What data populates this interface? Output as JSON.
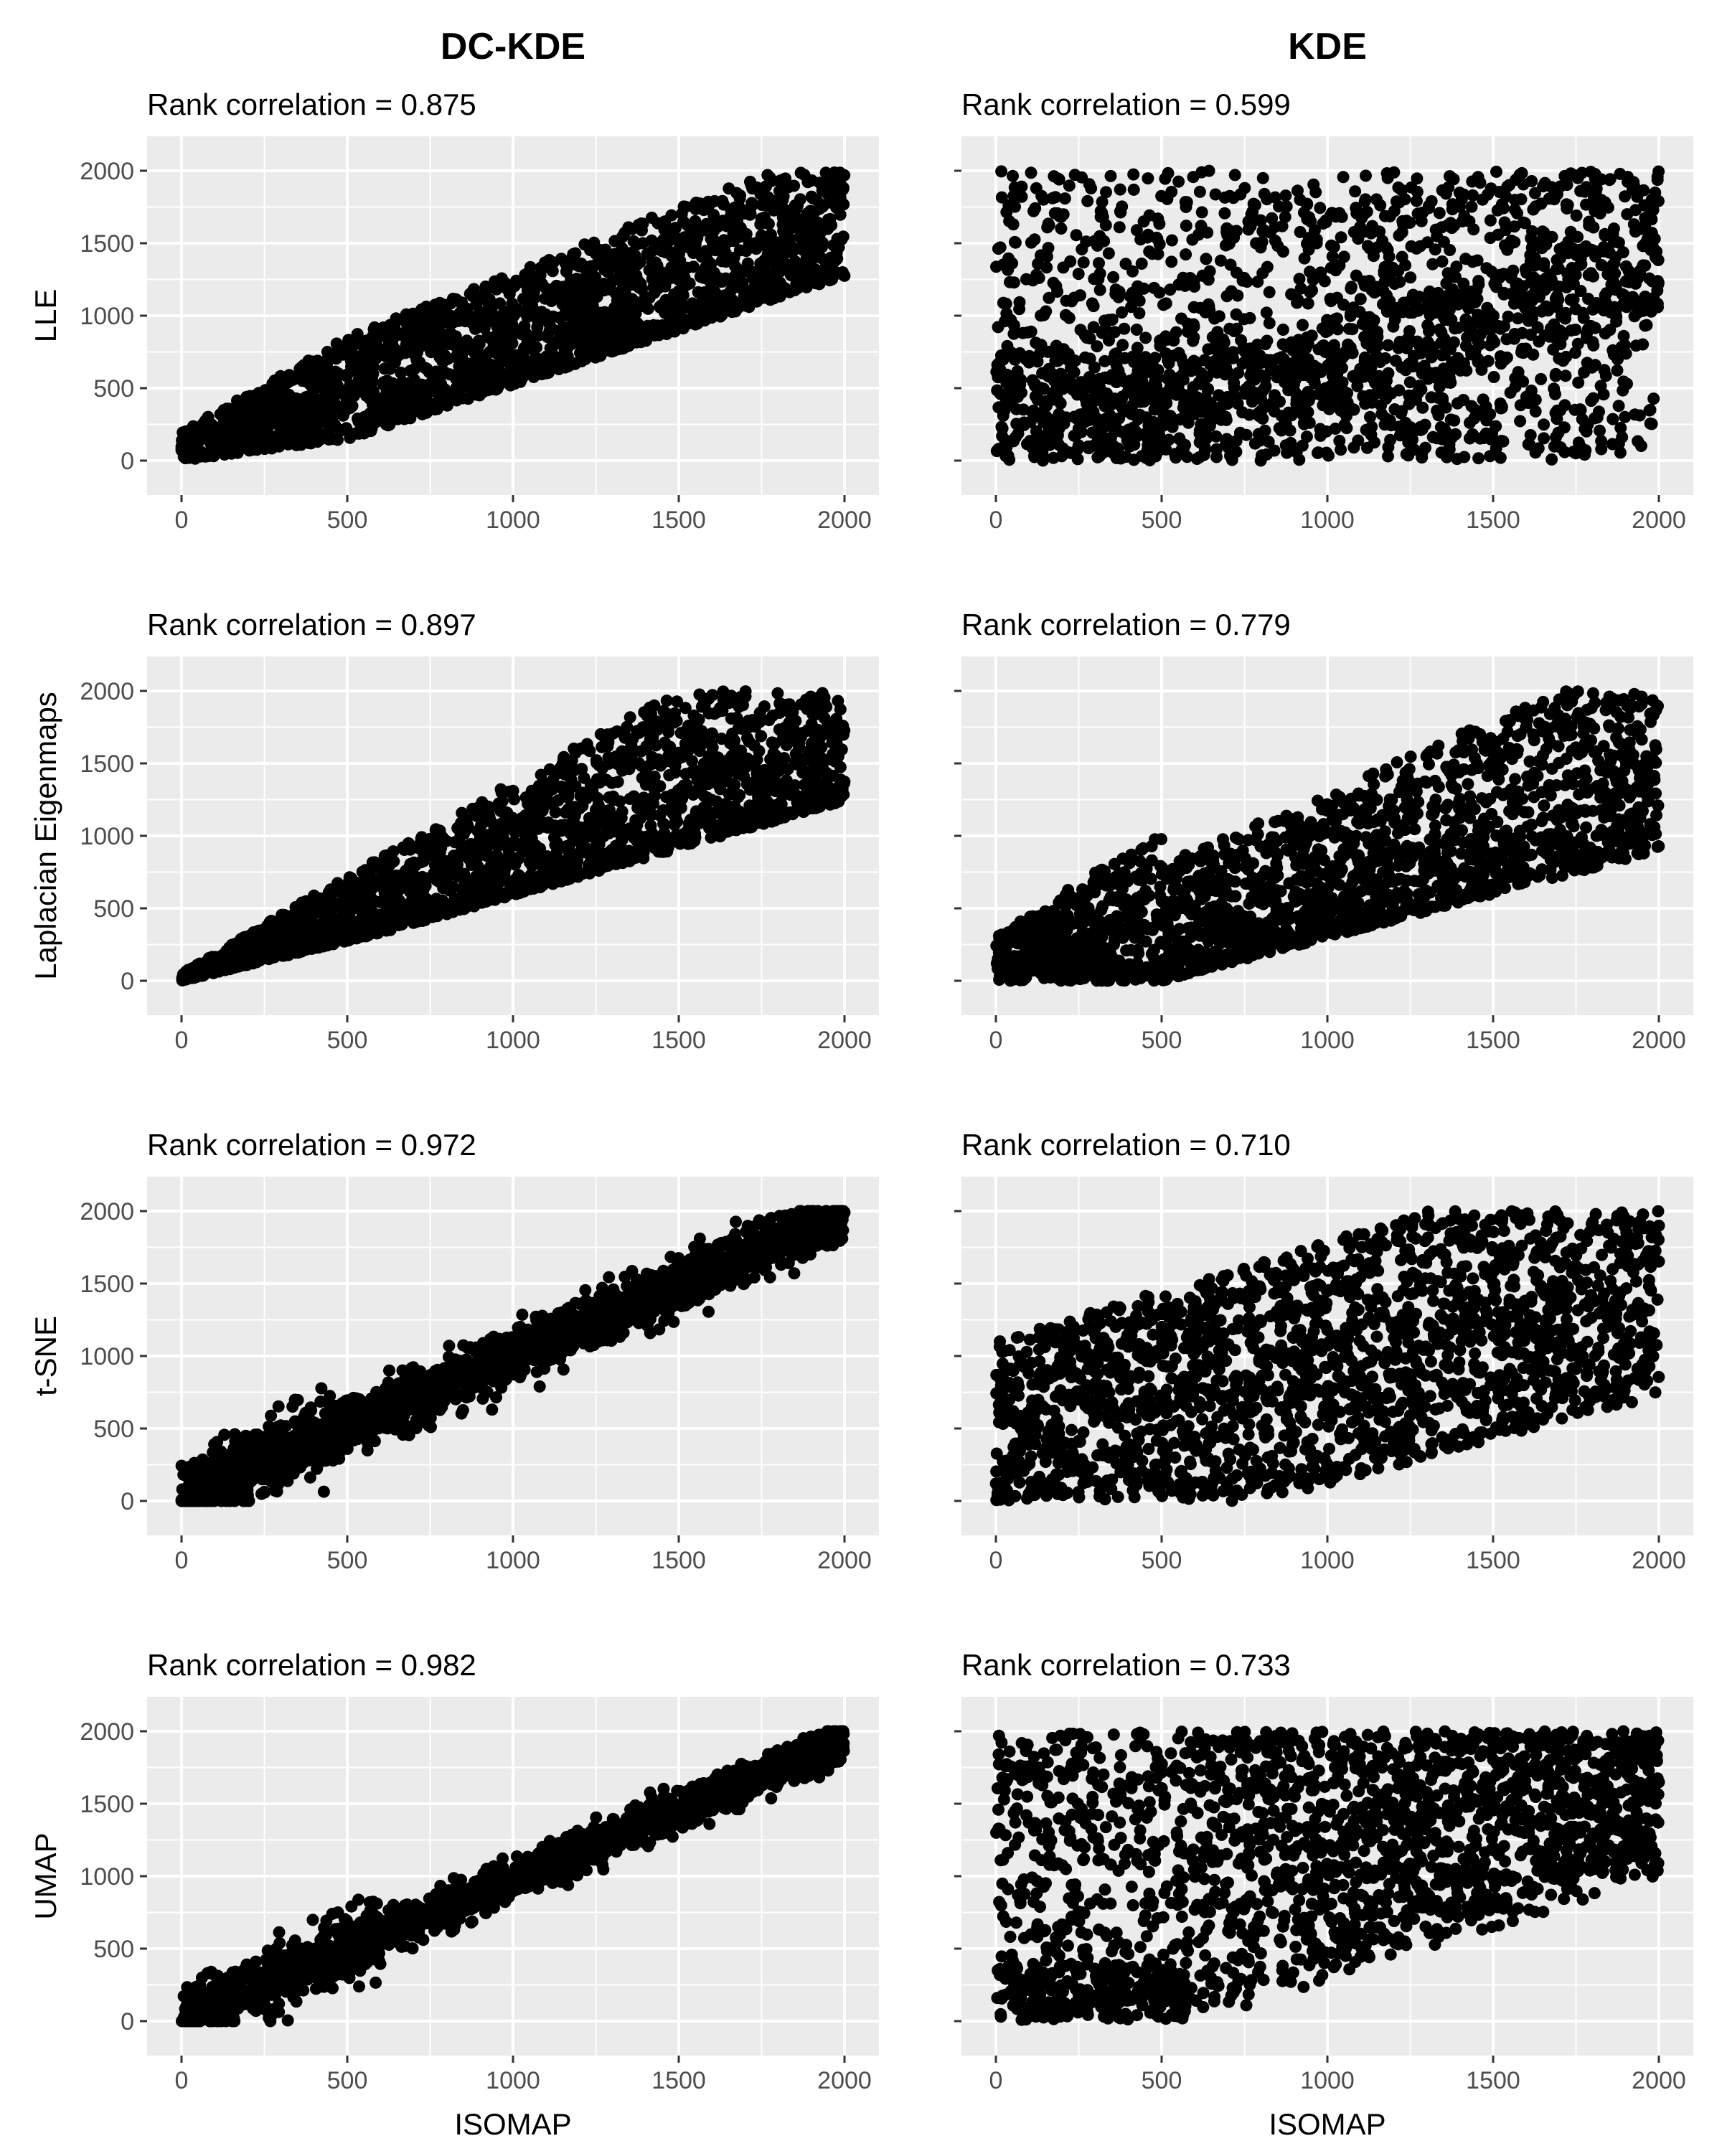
{
  "figure": {
    "column_titles": [
      "DC-KDE",
      "KDE"
    ],
    "row_labels": [
      "LLE",
      "Laplacian Eigenmaps",
      "t-SNE",
      "UMAP"
    ],
    "xlabel": "ISOMAP"
  },
  "colors": {
    "panel_background": "#ebebeb",
    "gridline": "#ffffff",
    "point": "#000000",
    "tick_text": "#4d4d4d"
  },
  "chart_data": [
    {
      "type": "scatter",
      "row": "LLE",
      "column": "DC-KDE",
      "title": "Rank correlation = 0.875",
      "xlabel": "",
      "ylabel": "LLE",
      "xlim": [
        0,
        2000
      ],
      "ylim": [
        0,
        2000
      ],
      "xticks": [
        0,
        500,
        1000,
        1500,
        2000
      ],
      "yticks": [
        0,
        500,
        1000,
        1500,
        2000
      ],
      "rank_correlation": 0.875,
      "n_points": 2000,
      "pattern": "dc_lle"
    },
    {
      "type": "scatter",
      "row": "LLE",
      "column": "KDE",
      "title": "Rank correlation = 0.599",
      "xlabel": "",
      "ylabel": "",
      "xlim": [
        0,
        2000
      ],
      "ylim": [
        0,
        2000
      ],
      "xticks": [
        0,
        500,
        1000,
        1500,
        2000
      ],
      "yticks": [
        0,
        500,
        1000,
        1500,
        2000
      ],
      "rank_correlation": 0.599,
      "n_points": 2000,
      "pattern": "kde_lle"
    },
    {
      "type": "scatter",
      "row": "Laplacian Eigenmaps",
      "column": "DC-KDE",
      "title": "Rank correlation = 0.897",
      "xlabel": "",
      "ylabel": "Laplacian Eigenmaps",
      "xlim": [
        0,
        2000
      ],
      "ylim": [
        0,
        2000
      ],
      "xticks": [
        0,
        500,
        1000,
        1500,
        2000
      ],
      "yticks": [
        0,
        500,
        1000,
        1500,
        2000
      ],
      "rank_correlation": 0.897,
      "n_points": 2000,
      "pattern": "dc_le"
    },
    {
      "type": "scatter",
      "row": "Laplacian Eigenmaps",
      "column": "KDE",
      "title": "Rank correlation = 0.779",
      "xlabel": "",
      "ylabel": "",
      "xlim": [
        0,
        2000
      ],
      "ylim": [
        0,
        2000
      ],
      "xticks": [
        0,
        500,
        1000,
        1500,
        2000
      ],
      "yticks": [
        0,
        500,
        1000,
        1500,
        2000
      ],
      "rank_correlation": 0.779,
      "n_points": 2000,
      "pattern": "kde_le"
    },
    {
      "type": "scatter",
      "row": "t-SNE",
      "column": "DC-KDE",
      "title": "Rank correlation = 0.972",
      "xlabel": "",
      "ylabel": "t-SNE",
      "xlim": [
        0,
        2000
      ],
      "ylim": [
        0,
        2000
      ],
      "xticks": [
        0,
        500,
        1000,
        1500,
        2000
      ],
      "yticks": [
        0,
        500,
        1000,
        1500,
        2000
      ],
      "rank_correlation": 0.972,
      "n_points": 2000,
      "pattern": "dc_tsne"
    },
    {
      "type": "scatter",
      "row": "t-SNE",
      "column": "KDE",
      "title": "Rank correlation = 0.710",
      "xlabel": "",
      "ylabel": "",
      "xlim": [
        0,
        2000
      ],
      "ylim": [
        0,
        2000
      ],
      "xticks": [
        0,
        500,
        1000,
        1500,
        2000
      ],
      "yticks": [
        0,
        500,
        1000,
        1500,
        2000
      ],
      "rank_correlation": 0.71,
      "n_points": 2000,
      "pattern": "kde_tsne"
    },
    {
      "type": "scatter",
      "row": "UMAP",
      "column": "DC-KDE",
      "title": "Rank correlation = 0.982",
      "xlabel": "ISOMAP",
      "ylabel": "UMAP",
      "xlim": [
        0,
        2000
      ],
      "ylim": [
        0,
        2000
      ],
      "xticks": [
        0,
        500,
        1000,
        1500,
        2000
      ],
      "yticks": [
        0,
        500,
        1000,
        1500,
        2000
      ],
      "rank_correlation": 0.982,
      "n_points": 2000,
      "pattern": "dc_umap"
    },
    {
      "type": "scatter",
      "row": "UMAP",
      "column": "KDE",
      "title": "Rank correlation = 0.733",
      "xlabel": "ISOMAP",
      "ylabel": "",
      "xlim": [
        0,
        2000
      ],
      "ylim": [
        0,
        2000
      ],
      "xticks": [
        0,
        500,
        1000,
        1500,
        2000
      ],
      "yticks": [
        0,
        500,
        1000,
        1500,
        2000
      ],
      "rank_correlation": 0.733,
      "n_points": 2000,
      "pattern": "kde_umap"
    }
  ]
}
